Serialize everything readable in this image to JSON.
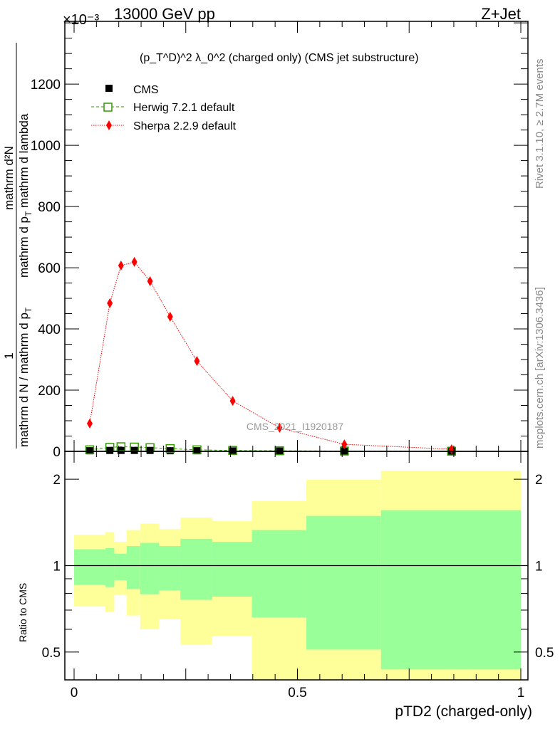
{
  "header": {
    "left": "13000 GeV pp",
    "right": "Z+Jet",
    "multiplier": "×10⁻³"
  },
  "side": {
    "rivet": "Rivet 3.1.10, ≥ 2.7M events",
    "mcplots": "mcplots.cern.ch [arXiv:1306.3436]"
  },
  "watermark": "CMS_2021_I1920187",
  "chart_data": [
    {
      "type": "line",
      "title": "(p_T^D)^2 λ_0^2 (charged only) (CMS jet substructure)",
      "title_parts": {
        "a": "(p",
        "sub": "T",
        "sup": "D",
        "b": ")",
        "c": "2",
        "d": " λ_0",
        "e": "2",
        "f": " (charged only) (CMS jet substructure)"
      },
      "ylabel_parts": {
        "num1": "1",
        "den1": "mathrm d N / mathrm d p",
        "num2": "mathrm d²N",
        "den2": "mathrm d p",
        "den2b": " mathrm d p",
        "den2c": " mathrm d lambda",
        "sub": "T"
      },
      "ylim": [
        0,
        1405
      ],
      "yticks": [
        0,
        200,
        400,
        600,
        800,
        1000,
        1200
      ],
      "xlim": [
        0,
        1
      ],
      "legend_placement": "top-left",
      "series": [
        {
          "name": "CMS",
          "color": "#000000",
          "x": [
            0.035,
            0.08,
            0.105,
            0.135,
            0.17,
            0.215,
            0.275,
            0.355,
            0.46,
            0.605,
            0.845
          ],
          "y": [
            2,
            3,
            3,
            3,
            3,
            2,
            2,
            1.5,
            1,
            0.5,
            0.2
          ]
        },
        {
          "name": "Herwig 7.2.1 default",
          "color": "#339900",
          "x": [
            0.035,
            0.08,
            0.105,
            0.135,
            0.17,
            0.215,
            0.275,
            0.355,
            0.46,
            0.605,
            0.845
          ],
          "y": [
            5,
            13,
            15,
            14,
            12,
            9,
            5,
            3,
            2,
            1,
            0.5
          ]
        },
        {
          "name": "Sherpa 2.2.9 default",
          "color": "#ff0000",
          "x": [
            0.035,
            0.08,
            0.105,
            0.135,
            0.17,
            0.215,
            0.275,
            0.355,
            0.46,
            0.605,
            0.845
          ],
          "y": [
            91,
            484,
            607,
            619,
            556,
            440,
            295,
            165,
            77,
            23,
            7
          ]
        }
      ]
    },
    {
      "type": "area",
      "ylabel": "Ratio to CMS",
      "xlabel": "pTD2 (charged-only)",
      "yscale": "log",
      "ylim": [
        0.4,
        2.5
      ],
      "yticks": [
        0.5,
        1,
        2
      ],
      "ytick_labels": [
        "0.5",
        "1",
        "2"
      ],
      "xticks": [
        0,
        0.5,
        1
      ],
      "xtick_labels": [
        "0",
        "0.5",
        "1"
      ],
      "bin_edges": [
        0,
        0.07,
        0.09,
        0.118,
        0.148,
        0.19,
        0.238,
        0.309,
        0.398,
        0.52,
        0.687,
        1.0
      ],
      "stat_band": {
        "color": "#99ff99",
        "hi": [
          1.14,
          1.15,
          1.1,
          1.17,
          1.2,
          1.17,
          1.24,
          1.21,
          1.33,
          1.49,
          1.56
        ],
        "lo": [
          0.857,
          0.842,
          0.89,
          0.83,
          0.795,
          0.82,
          0.76,
          0.78,
          0.66,
          0.51,
          0.435
        ]
      },
      "total_band": {
        "color": "#ffff99",
        "hi": [
          1.28,
          1.31,
          1.21,
          1.33,
          1.4,
          1.34,
          1.47,
          1.43,
          1.68,
          1.99,
          2.14
        ],
        "lo": [
          0.72,
          0.69,
          0.79,
          0.67,
          0.6,
          0.65,
          0.53,
          0.57,
          0.35,
          0.35,
          0.35
        ]
      }
    }
  ]
}
